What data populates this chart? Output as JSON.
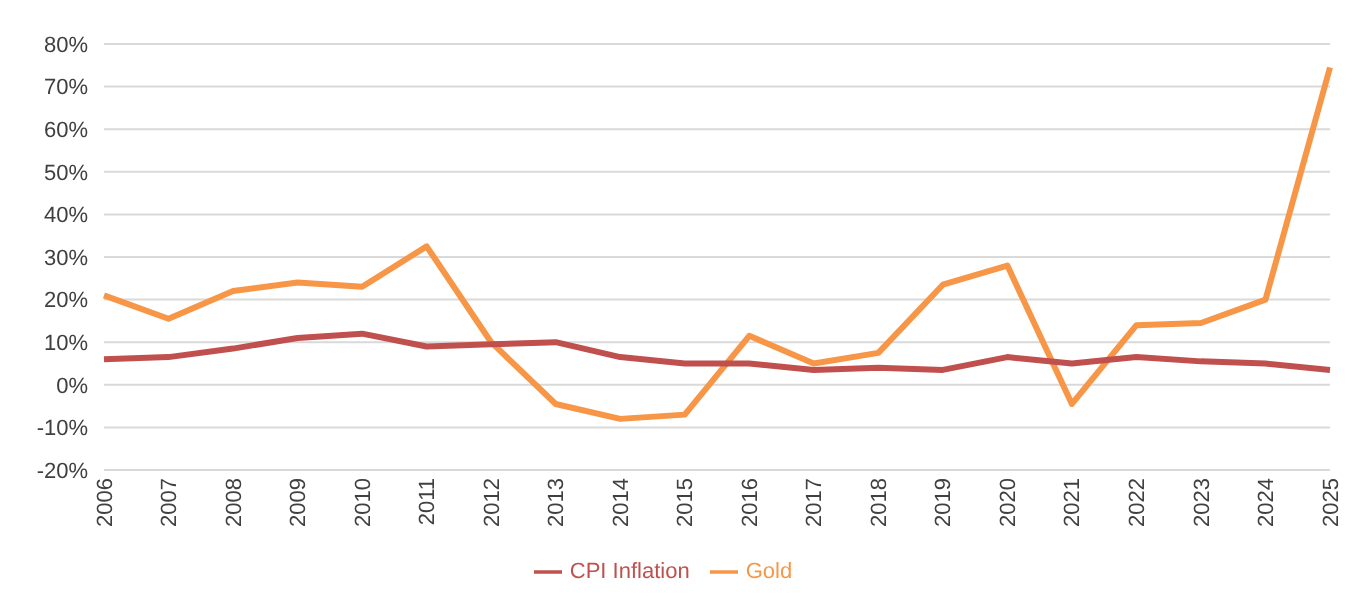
{
  "chart_data": {
    "type": "line",
    "categories": [
      "2006",
      "2007",
      "2008",
      "2009",
      "2010",
      "2011",
      "2012",
      "2013",
      "2014",
      "2015",
      "2016",
      "2017",
      "2018",
      "2019",
      "2020",
      "2021",
      "2022",
      "2023",
      "2024",
      "2025"
    ],
    "series": [
      {
        "name": "Gold",
        "color": "#f79646",
        "values": [
          21,
          15.5,
          22,
          24,
          23,
          32.5,
          10,
          -4.5,
          -8,
          -7,
          11.5,
          5,
          7.5,
          23.5,
          28,
          -4.5,
          14,
          14.5,
          20,
          74.5
        ]
      },
      {
        "name": "CPI Inflation",
        "color": "#c0504d",
        "values": [
          6,
          6.5,
          8.5,
          11,
          12,
          9,
          9.5,
          10,
          6.5,
          5,
          5,
          3.5,
          4,
          3.5,
          6.5,
          5,
          6.5,
          5.5,
          5,
          3.5
        ]
      }
    ],
    "ylim": [
      -20,
      80
    ],
    "yticks": [
      {
        "value": -20,
        "label": "-20%"
      },
      {
        "value": -10,
        "label": "-10%"
      },
      {
        "value": 0,
        "label": "0%"
      },
      {
        "value": 10,
        "label": "10%"
      },
      {
        "value": 20,
        "label": "20%"
      },
      {
        "value": 30,
        "label": "30%"
      },
      {
        "value": 40,
        "label": "40%"
      },
      {
        "value": 50,
        "label": "50%"
      },
      {
        "value": 60,
        "label": "60%"
      },
      {
        "value": 70,
        "label": "70%"
      },
      {
        "value": 80,
        "label": "80%"
      }
    ],
    "grid": "y",
    "legend": "bottom",
    "marker": "none",
    "line_style": "solid"
  }
}
